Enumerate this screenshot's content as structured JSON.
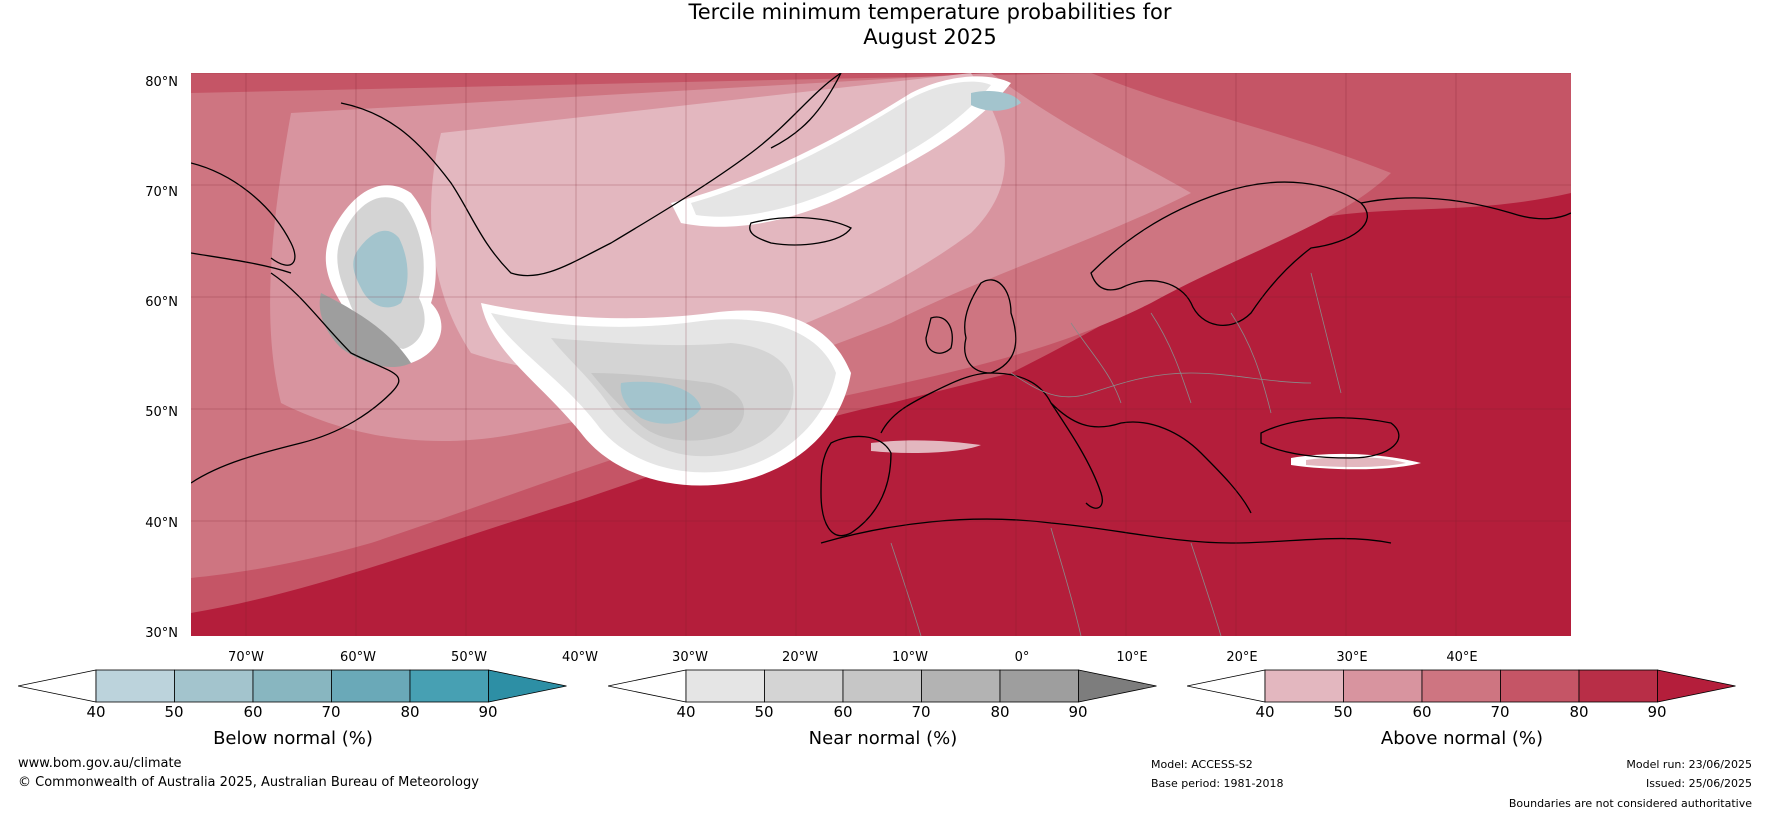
{
  "title_line1": "Tercile minimum temperature probabilities for",
  "title_line2": "August 2025",
  "lat_labels": [
    "80°N",
    "70°N",
    "60°N",
    "50°N",
    "40°N",
    "30°N"
  ],
  "lon_labels": [
    "70°W",
    "60°W",
    "50°W",
    "40°W",
    "30°W",
    "20°W",
    "10°W",
    "0°",
    "10°E",
    "20°E",
    "30°E",
    "40°E"
  ],
  "colorbars": [
    {
      "title": "Below normal (%)",
      "ticks": [
        "40",
        "50",
        "60",
        "70",
        "80",
        "90"
      ],
      "colors": [
        "#ffffff",
        "#bcd3dc",
        "#a3c4cd",
        "#88b6c0",
        "#6aa9b8",
        "#47a0b3",
        "#2d8fa5"
      ]
    },
    {
      "title": "Near normal (%)",
      "ticks": [
        "40",
        "50",
        "60",
        "70",
        "80",
        "90"
      ],
      "colors": [
        "#ffffff",
        "#e5e5e5",
        "#d4d4d4",
        "#c6c6c6",
        "#b3b3b3",
        "#9e9e9e",
        "#7d7d7d"
      ]
    },
    {
      "title": "Above normal (%)",
      "ticks": [
        "40",
        "50",
        "60",
        "70",
        "80",
        "90"
      ],
      "colors": [
        "#ffffff",
        "#e3b7bf",
        "#d8949f",
        "#ce7581",
        "#c55566",
        "#b82e47",
        "#b41e3b"
      ]
    }
  ],
  "footer": {
    "website": "www.bom.gov.au/climate",
    "copyright": "© Commonwealth of Australia 2025, Australian Bureau of Meteorology",
    "model": "Model: ACCESS-S2",
    "base_period": "Base period: 1981-2018",
    "model_run": "Model run: 23/06/2025",
    "issued": "Issued: 25/06/2025",
    "disclaimer": "Boundaries are not considered authoritative"
  }
}
